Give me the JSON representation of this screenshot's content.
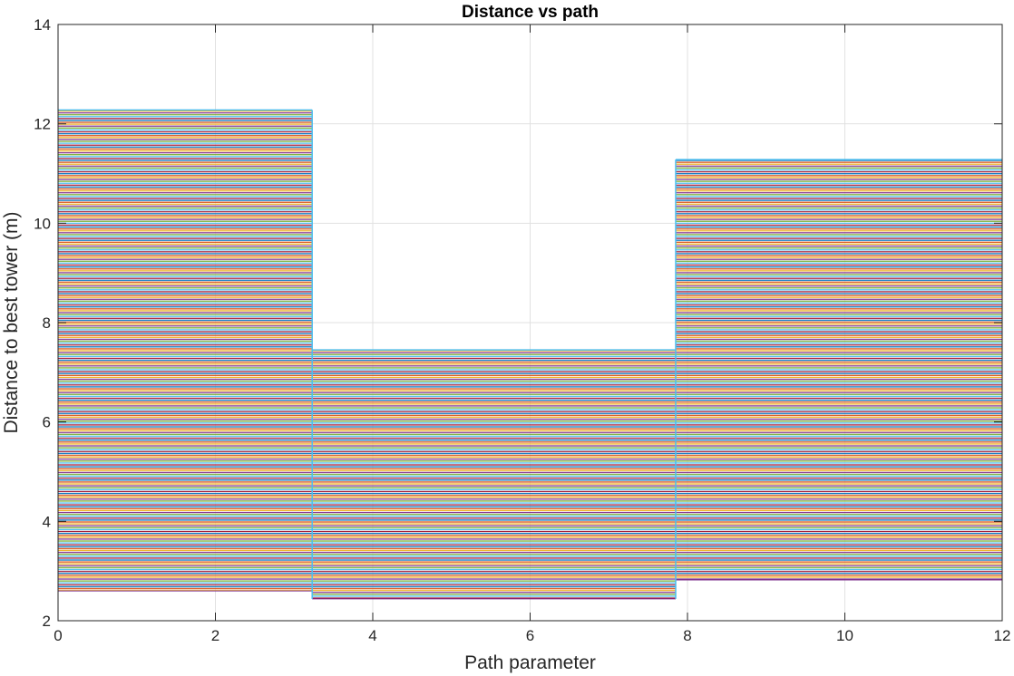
{
  "chart_data": {
    "type": "line",
    "title": "Distance vs path",
    "xlabel": "Path parameter",
    "ylabel": "Distance to best tower (m)",
    "xlim": [
      0,
      12
    ],
    "ylim": [
      2,
      14
    ],
    "xticks": [
      0,
      2,
      4,
      6,
      8,
      10,
      12
    ],
    "yticks": [
      2,
      4,
      6,
      8,
      10,
      12,
      14
    ],
    "grid": true,
    "legend": "none",
    "series_colors": [
      "#0072BD",
      "#D95319",
      "#EDB120",
      "#7E2F8E",
      "#77AC30",
      "#4DBEEE",
      "#A2142F"
    ],
    "segments": [
      {
        "x": [
          0,
          3.23
        ],
        "y_min": 2.6,
        "y_max": 12.28
      },
      {
        "x": [
          3.23,
          7.85
        ],
        "y_min": 2.44,
        "y_max": 7.45
      },
      {
        "x": [
          7.85,
          12
        ],
        "y_min": 2.82,
        "y_max": 11.28
      }
    ]
  }
}
